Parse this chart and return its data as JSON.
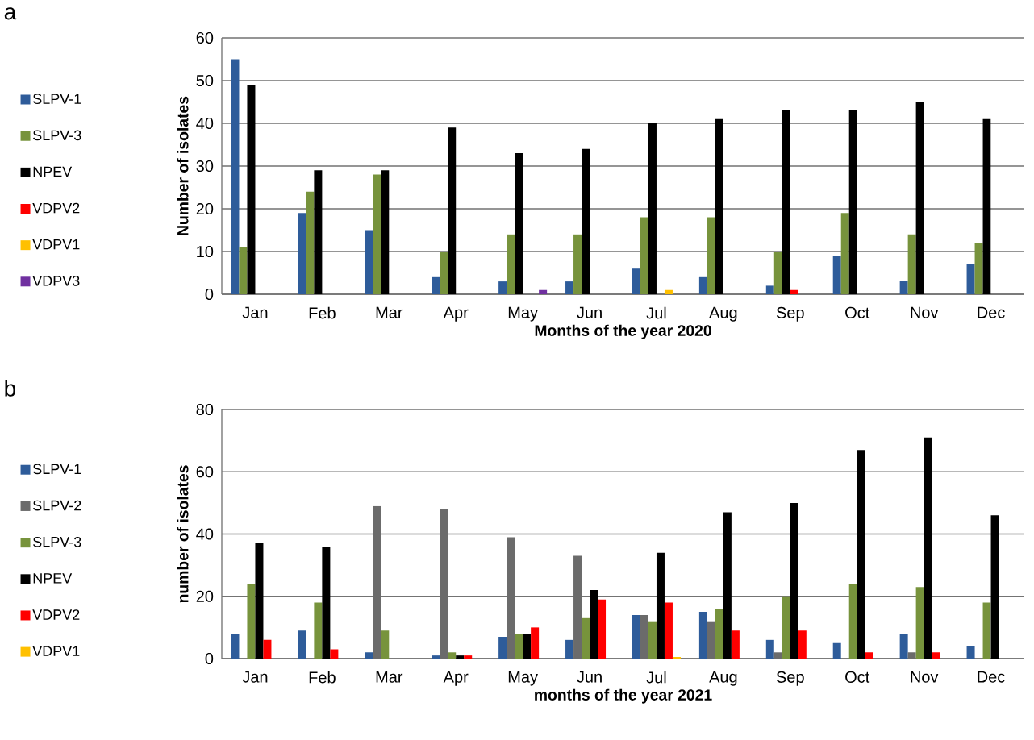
{
  "chart_data": [
    {
      "type": "bar",
      "annotations": [
        "a"
      ],
      "xlabel": "Months of the year 2020",
      "ylabel": "Number of isolates",
      "categories": [
        "Jan",
        "Feb",
        "Mar",
        "Apr",
        "May",
        "Jun",
        "Jul",
        "Aug",
        "Sep",
        "Oct",
        "Nov",
        "Dec"
      ],
      "ylim": [
        0,
        60
      ],
      "yticks": [
        0,
        10,
        20,
        30,
        40,
        50,
        60
      ],
      "grid": "y",
      "legend": "left",
      "series": [
        {
          "name": "SLPV-1",
          "color": "#2e5c9a",
          "values": [
            55,
            19,
            15,
            4,
            3,
            3,
            6,
            4,
            2,
            9,
            3,
            7
          ]
        },
        {
          "name": "SLPV-3",
          "color": "#77933c",
          "values": [
            11,
            24,
            28,
            10,
            14,
            14,
            18,
            18,
            10,
            19,
            14,
            12
          ]
        },
        {
          "name": "NPEV",
          "color": "#000000",
          "values": [
            49,
            29,
            29,
            39,
            33,
            34,
            40,
            41,
            43,
            43,
            45,
            41
          ]
        },
        {
          "name": "VDPV2",
          "color": "#ff0000",
          "values": [
            0,
            0,
            0,
            0,
            0,
            0,
            0,
            0,
            1,
            0,
            0,
            0
          ]
        },
        {
          "name": "VDPV1",
          "color": "#ffc000",
          "values": [
            0,
            0,
            0,
            0,
            0,
            0,
            1,
            0,
            0,
            0,
            0,
            0
          ]
        },
        {
          "name": "VDPV3",
          "color": "#7030a0",
          "values": [
            0,
            0,
            0,
            0,
            1,
            0,
            0,
            0,
            0,
            0,
            0,
            0
          ]
        }
      ]
    },
    {
      "type": "bar",
      "annotations": [
        "b"
      ],
      "xlabel": "months of the year 2021",
      "ylabel": "number of isolates",
      "categories": [
        "Jan",
        "Feb",
        "Mar",
        "Apr",
        "May",
        "Jun",
        "Jul",
        "Aug",
        "Sep",
        "Oct",
        "Nov",
        "Dec"
      ],
      "ylim": [
        0,
        80
      ],
      "yticks": [
        0,
        20,
        40,
        60,
        80
      ],
      "grid": "y",
      "legend": "left",
      "series": [
        {
          "name": "SLPV-1",
          "color": "#2e5c9a",
          "values": [
            8,
            9,
            2,
            1,
            7,
            6,
            14,
            15,
            6,
            5,
            8,
            4
          ]
        },
        {
          "name": "SLPV-2",
          "color": "#6b6b6b",
          "values": [
            0,
            0,
            49,
            48,
            39,
            33,
            14,
            12,
            2,
            0,
            2,
            0
          ]
        },
        {
          "name": "SLPV-3",
          "color": "#77933c",
          "values": [
            24,
            18,
            9,
            2,
            8,
            13,
            12,
            16,
            20,
            24,
            23,
            18
          ]
        },
        {
          "name": "NPEV",
          "color": "#000000",
          "values": [
            37,
            36,
            0,
            1,
            8,
            22,
            34,
            47,
            50,
            67,
            71,
            46
          ]
        },
        {
          "name": "VDPV2",
          "color": "#ff0000",
          "values": [
            6,
            3,
            0,
            1,
            10,
            19,
            18,
            9,
            9,
            2,
            2,
            0
          ]
        },
        {
          "name": "VDPV1",
          "color": "#ffc000",
          "values": [
            0,
            0,
            0,
            0,
            0,
            0,
            0.5,
            0,
            0,
            0,
            0,
            0
          ]
        }
      ]
    }
  ]
}
